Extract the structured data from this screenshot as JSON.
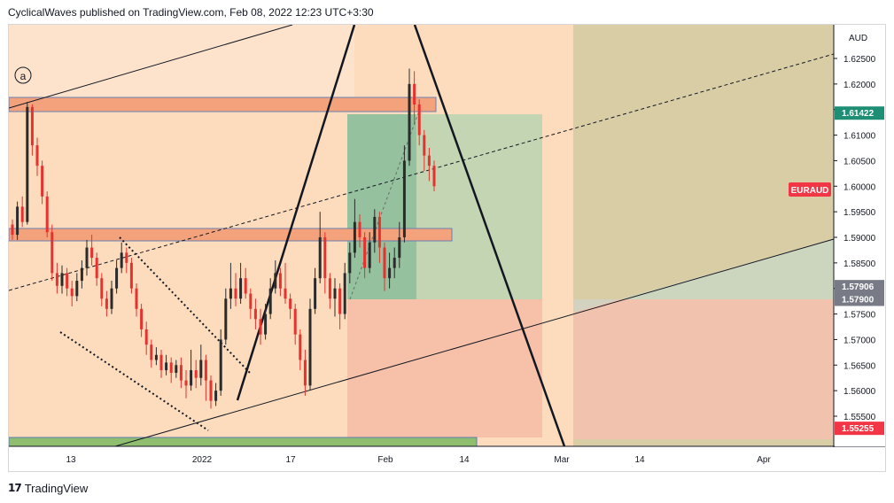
{
  "header": {
    "text": "CyclicalWaves published on TradingView.com, Feb 08, 2022 12:23 UTC+3:30"
  },
  "footer": {
    "logo_glyph": "17",
    "brand": "TradingView"
  },
  "chart_data": {
    "type": "candlestick",
    "symbol": "EURAUD",
    "currency": "AUD",
    "y_ticks": [
      "1.62500",
      "1.62000",
      "1.61500",
      "1.61000",
      "1.60500",
      "1.60000",
      "1.59500",
      "1.59000",
      "1.58500",
      "1.58000",
      "1.57500",
      "1.57000",
      "1.56500",
      "1.56000",
      "1.55500"
    ],
    "x_ticks": [
      "13",
      "2022",
      "17",
      "Feb",
      "14",
      "Mar",
      "14",
      "Apr"
    ],
    "price_tags": [
      {
        "label": "1.61422",
        "value": 1.61422,
        "color": "#1e8e74"
      },
      {
        "label": "1.57906",
        "value": 1.57906,
        "color": "#787b86"
      },
      {
        "label": "1.57900",
        "value": 1.579,
        "color": "#787b86"
      },
      {
        "label": "1.55255",
        "value": 1.55255,
        "color": "#f23645"
      }
    ],
    "symbol_tag": {
      "label": "EURAUD",
      "value": 1.6,
      "color": "#f23645"
    },
    "wave_label": "a",
    "candles": [
      [
        1.5925,
        1.5905,
        1.5935,
        1.5895
      ],
      [
        1.5905,
        1.596,
        1.597,
        1.5895
      ],
      [
        1.596,
        1.593,
        1.598,
        1.592
      ],
      [
        1.593,
        1.6155,
        1.6165,
        1.5925
      ],
      [
        1.6155,
        1.608,
        1.616,
        1.606
      ],
      [
        1.608,
        1.604,
        1.6095,
        1.602
      ],
      [
        1.604,
        1.598,
        1.605,
        1.5965
      ],
      [
        1.598,
        1.591,
        1.599,
        1.59
      ],
      [
        1.591,
        1.583,
        1.5925,
        1.5815
      ],
      [
        1.583,
        1.5805,
        1.585,
        1.579
      ],
      [
        1.5805,
        1.583,
        1.5845,
        1.579
      ],
      [
        1.583,
        1.58,
        1.584,
        1.5785
      ],
      [
        1.58,
        1.5785,
        1.5815,
        1.5765
      ],
      [
        1.5785,
        1.5815,
        1.583,
        1.5775
      ],
      [
        1.5815,
        1.584,
        1.5855,
        1.58
      ],
      [
        1.584,
        1.588,
        1.5895,
        1.5825
      ],
      [
        1.588,
        1.586,
        1.5905,
        1.5845
      ],
      [
        1.586,
        1.582,
        1.587,
        1.5805
      ],
      [
        1.582,
        1.578,
        1.583,
        1.5765
      ],
      [
        1.578,
        1.576,
        1.5795,
        1.5745
      ],
      [
        1.576,
        1.58,
        1.5815,
        1.575
      ],
      [
        1.58,
        1.584,
        1.5855,
        1.579
      ],
      [
        1.584,
        1.587,
        1.589,
        1.583
      ],
      [
        1.587,
        1.585,
        1.588,
        1.583
      ],
      [
        1.585,
        1.58,
        1.586,
        1.579
      ],
      [
        1.58,
        1.576,
        1.581,
        1.5745
      ],
      [
        1.576,
        1.572,
        1.577,
        1.5705
      ],
      [
        1.572,
        1.569,
        1.5735,
        1.567
      ],
      [
        1.569,
        1.566,
        1.57,
        1.5645
      ],
      [
        1.566,
        1.567,
        1.5685,
        1.565
      ],
      [
        1.567,
        1.564,
        1.568,
        1.5625
      ],
      [
        1.564,
        1.5655,
        1.567,
        1.563
      ],
      [
        1.5655,
        1.5635,
        1.5665,
        1.5615
      ],
      [
        1.5635,
        1.565,
        1.566,
        1.5625
      ],
      [
        1.565,
        1.562,
        1.5665,
        1.5605
      ],
      [
        1.562,
        1.561,
        1.564,
        1.5585
      ],
      [
        1.561,
        1.564,
        1.568,
        1.56
      ],
      [
        1.564,
        1.5625,
        1.566,
        1.5605
      ],
      [
        1.5625,
        1.566,
        1.569,
        1.561
      ],
      [
        1.566,
        1.562,
        1.567,
        1.558
      ],
      [
        1.562,
        1.558,
        1.563,
        1.5565
      ],
      [
        1.558,
        1.56,
        1.5615,
        1.557
      ],
      [
        1.56,
        1.57,
        1.572,
        1.559
      ],
      [
        1.57,
        1.578,
        1.58,
        1.569
      ],
      [
        1.578,
        1.58,
        1.585,
        1.576
      ],
      [
        1.58,
        1.578,
        1.583,
        1.5765
      ],
      [
        1.578,
        1.582,
        1.585,
        1.577
      ],
      [
        1.582,
        1.579,
        1.584,
        1.578
      ],
      [
        1.579,
        1.576,
        1.58,
        1.574
      ],
      [
        1.576,
        1.574,
        1.578,
        1.572
      ],
      [
        1.574,
        1.571,
        1.576,
        1.569
      ],
      [
        1.571,
        1.575,
        1.577,
        1.57
      ],
      [
        1.575,
        1.58,
        1.582,
        1.574
      ],
      [
        1.58,
        1.583,
        1.5855,
        1.579
      ],
      [
        1.583,
        1.58,
        1.584,
        1.5785
      ],
      [
        1.58,
        1.578,
        1.585,
        1.577
      ],
      [
        1.578,
        1.576,
        1.579,
        1.574
      ],
      [
        1.576,
        1.571,
        1.577,
        1.569
      ],
      [
        1.571,
        1.566,
        1.572,
        1.564
      ],
      [
        1.566,
        1.561,
        1.568,
        1.559
      ],
      [
        1.561,
        1.576,
        1.578,
        1.56
      ],
      [
        1.576,
        1.582,
        1.584,
        1.575
      ],
      [
        1.582,
        1.59,
        1.595,
        1.581
      ],
      [
        1.59,
        1.582,
        1.591,
        1.579
      ],
      [
        1.582,
        1.578,
        1.583,
        1.576
      ],
      [
        1.578,
        1.58,
        1.582,
        1.5745
      ],
      [
        1.58,
        1.575,
        1.581,
        1.572
      ],
      [
        1.575,
        1.583,
        1.585,
        1.574
      ],
      [
        1.583,
        1.587,
        1.589,
        1.581
      ],
      [
        1.587,
        1.593,
        1.5975,
        1.586
      ],
      [
        1.593,
        1.59,
        1.5945,
        1.588
      ],
      [
        1.59,
        1.584,
        1.591,
        1.582
      ],
      [
        1.584,
        1.589,
        1.591,
        1.583
      ],
      [
        1.589,
        1.594,
        1.5955,
        1.587
      ],
      [
        1.594,
        1.588,
        1.595,
        1.585
      ],
      [
        1.588,
        1.582,
        1.589,
        1.5795
      ],
      [
        1.582,
        1.584,
        1.587,
        1.58
      ],
      [
        1.584,
        1.586,
        1.588,
        1.582
      ],
      [
        1.586,
        1.59,
        1.593,
        1.584
      ],
      [
        1.59,
        1.605,
        1.608,
        1.589
      ],
      [
        1.605,
        1.62,
        1.623,
        1.604
      ],
      [
        1.62,
        1.616,
        1.6225,
        1.612
      ],
      [
        1.616,
        1.61,
        1.617,
        1.608
      ],
      [
        1.61,
        1.606,
        1.611,
        1.603
      ],
      [
        1.606,
        1.604,
        1.6075,
        1.601
      ],
      [
        1.604,
        1.6,
        1.605,
        1.599
      ]
    ]
  }
}
